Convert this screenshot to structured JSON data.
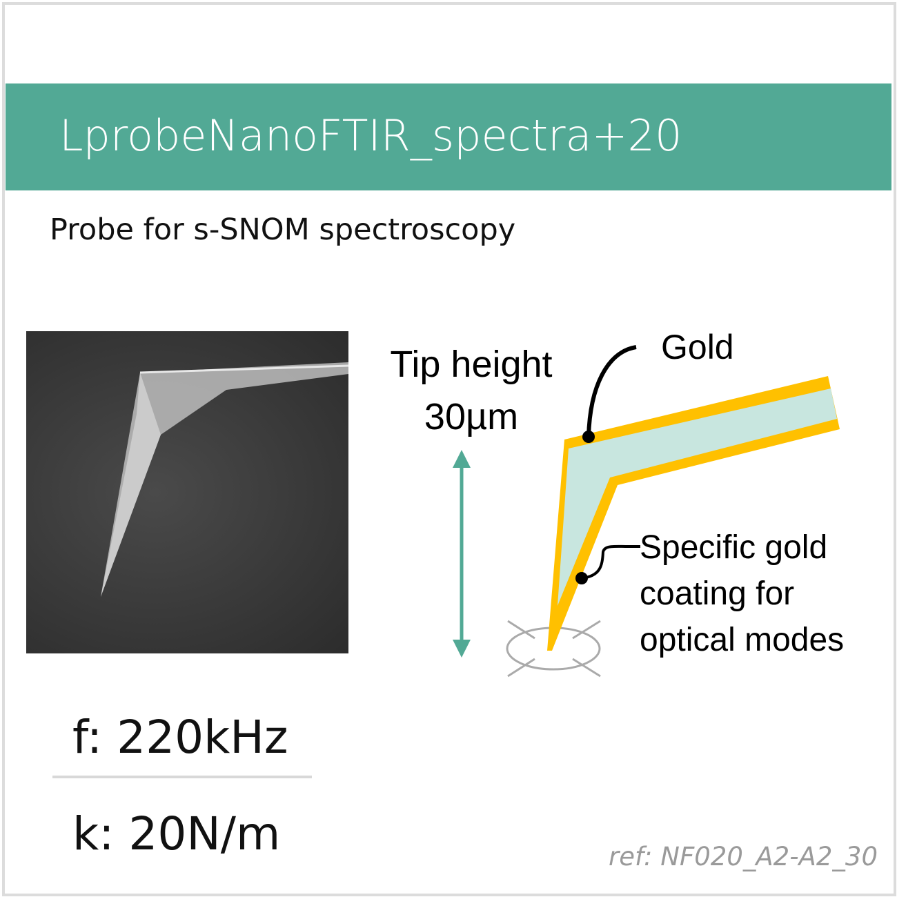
{
  "header": {
    "title": "LprobeNanoFTIR_spectra+20",
    "subtitle": "Probe for s-SNOM spectroscopy"
  },
  "diagram": {
    "tip_height_label": "Tip height",
    "tip_height_value": "30µm",
    "gold_label": "Gold",
    "coating_label": [
      "Specific gold",
      "coating for",
      "optical modes"
    ]
  },
  "specs": {
    "frequency": "f: 220kHz",
    "spring_constant": "k: 20N/m"
  },
  "reference": "ref: NF020_A2-A2_30",
  "colors": {
    "banner": "#52a995",
    "gold": "#ffc000",
    "cantilever": "#c8e6df",
    "arrow": "#52a995"
  }
}
